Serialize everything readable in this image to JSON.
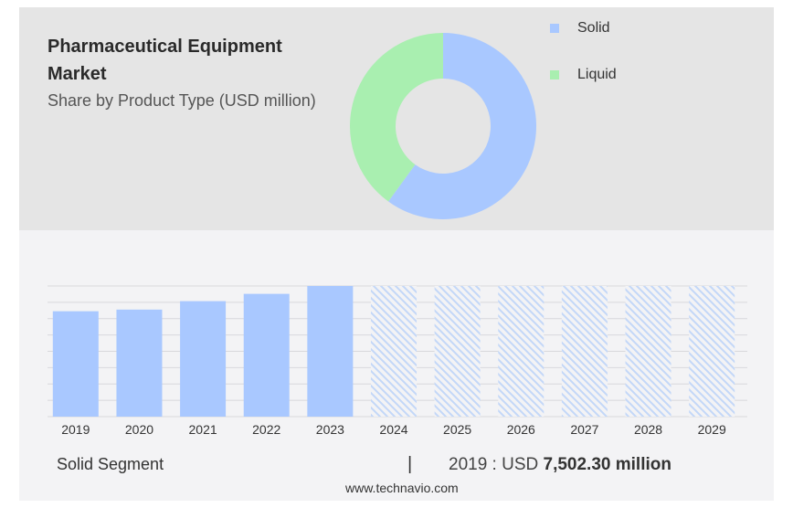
{
  "header": {
    "title_line1": "Pharmaceutical Equipment",
    "title_line2": "Market",
    "subtitle": "Share by Product Type (USD million)"
  },
  "donut": {
    "legend": [
      {
        "label": "Solid",
        "color": "#a9c8ff"
      },
      {
        "label": "Liquid",
        "color": "#a9efb0"
      }
    ]
  },
  "chart_data": [
    {
      "type": "pie",
      "variant": "donut",
      "categories": [
        "Solid",
        "Liquid"
      ],
      "values": [
        0.6,
        0.4
      ],
      "legend_position": "right"
    },
    {
      "type": "bar",
      "categories": [
        "2019",
        "2020",
        "2021",
        "2022",
        "2023",
        "2024",
        "2025",
        "2026",
        "2027",
        "2028",
        "2029"
      ],
      "values": [
        7502.3,
        7620,
        8220,
        8740,
        9300,
        9300,
        9300,
        9300,
        9300,
        9300,
        9300
      ],
      "forecast_from": "2024",
      "ylim": [
        0,
        9300
      ],
      "grid": true,
      "colors": {
        "actual": "#a9c8ff",
        "forecast": "#c3d7f8"
      }
    }
  ],
  "footer": {
    "segment_label": "Solid Segment",
    "divider": "|",
    "value_prefix": "2019 : USD ",
    "value_strong": "7,502.30 million",
    "source": "www.technavio.com"
  }
}
